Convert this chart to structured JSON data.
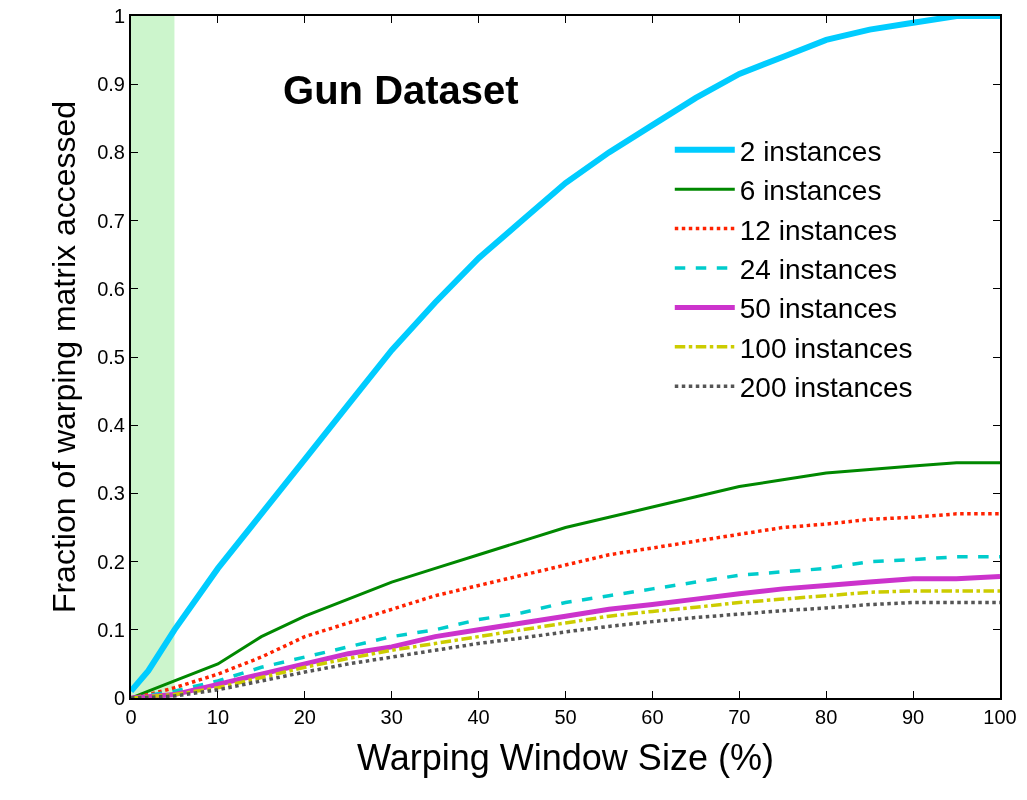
{
  "chart_data": {
    "type": "line",
    "title": "Gun Dataset",
    "xlabel": "Warping Window Size (%)",
    "ylabel": "Fraction of warping matrix accessed",
    "x": [
      0,
      2,
      5,
      10,
      15,
      20,
      25,
      30,
      35,
      40,
      45,
      50,
      55,
      60,
      65,
      70,
      75,
      80,
      85,
      90,
      95,
      100
    ],
    "series": [
      {
        "name": "2 instances",
        "color": "#00ccff",
        "line_style": "solid",
        "values": [
          0.01,
          0.04,
          0.1,
          0.19,
          0.27,
          0.35,
          0.43,
          0.51,
          0.58,
          0.645,
          0.7,
          0.755,
          0.8,
          0.84,
          0.88,
          0.915,
          0.94,
          0.965,
          0.98,
          0.99,
          1.0,
          1.0
        ]
      },
      {
        "name": "6 instances",
        "color": "#008800",
        "line_style": "solid",
        "values": [
          0,
          0.01,
          0.025,
          0.05,
          0.09,
          0.12,
          0.145,
          0.17,
          0.19,
          0.21,
          0.23,
          0.25,
          0.265,
          0.28,
          0.295,
          0.31,
          0.32,
          0.33,
          0.335,
          0.34,
          0.345,
          0.345
        ]
      },
      {
        "name": "12 instances",
        "color": "#ff2200",
        "line_style": "dotted",
        "values": [
          0,
          0.005,
          0.015,
          0.035,
          0.06,
          0.09,
          0.11,
          0.13,
          0.15,
          0.165,
          0.18,
          0.195,
          0.21,
          0.22,
          0.23,
          0.24,
          0.25,
          0.255,
          0.262,
          0.265,
          0.27,
          0.27
        ]
      },
      {
        "name": "24 instances",
        "color": "#00cccc",
        "line_style": "dashed",
        "values": [
          0,
          0.004,
          0.01,
          0.025,
          0.045,
          0.06,
          0.075,
          0.09,
          0.1,
          0.115,
          0.125,
          0.14,
          0.15,
          0.16,
          0.17,
          0.18,
          0.185,
          0.19,
          0.2,
          0.203,
          0.207,
          0.207
        ]
      },
      {
        "name": "50 instances",
        "color": "#cc33cc",
        "line_style": "solid",
        "values": [
          0,
          0.002,
          0.005,
          0.02,
          0.035,
          0.05,
          0.065,
          0.075,
          0.09,
          0.1,
          0.11,
          0.12,
          0.13,
          0.137,
          0.145,
          0.153,
          0.16,
          0.165,
          0.17,
          0.175,
          0.175,
          0.178
        ]
      },
      {
        "name": "100 instances",
        "color": "#cccc00",
        "line_style": "dashdot",
        "values": [
          0,
          0.002,
          0.005,
          0.015,
          0.03,
          0.045,
          0.058,
          0.07,
          0.08,
          0.09,
          0.1,
          0.11,
          0.12,
          0.127,
          0.133,
          0.14,
          0.145,
          0.15,
          0.155,
          0.157,
          0.157,
          0.157
        ]
      },
      {
        "name": "200 instances",
        "color": "#555555",
        "line_style": "dotted",
        "values": [
          0,
          0.001,
          0.003,
          0.012,
          0.025,
          0.038,
          0.05,
          0.06,
          0.07,
          0.08,
          0.088,
          0.097,
          0.105,
          0.112,
          0.118,
          0.123,
          0.128,
          0.132,
          0.137,
          0.14,
          0.14,
          0.14
        ]
      }
    ],
    "bands": [
      {
        "axis": "x",
        "from": 0,
        "to": 5,
        "color": "#ccf5cc"
      }
    ],
    "xlim": [
      0,
      100
    ],
    "xticks": [
      0,
      10,
      20,
      30,
      40,
      50,
      60,
      70,
      80,
      90,
      100
    ],
    "ylim": [
      0,
      1
    ],
    "yticks": [
      0,
      0.1,
      0.2,
      0.3,
      0.4,
      0.5,
      0.6,
      0.7,
      0.8,
      0.9,
      1
    ],
    "grid": false,
    "legend": "top right",
    "marker": "none"
  }
}
